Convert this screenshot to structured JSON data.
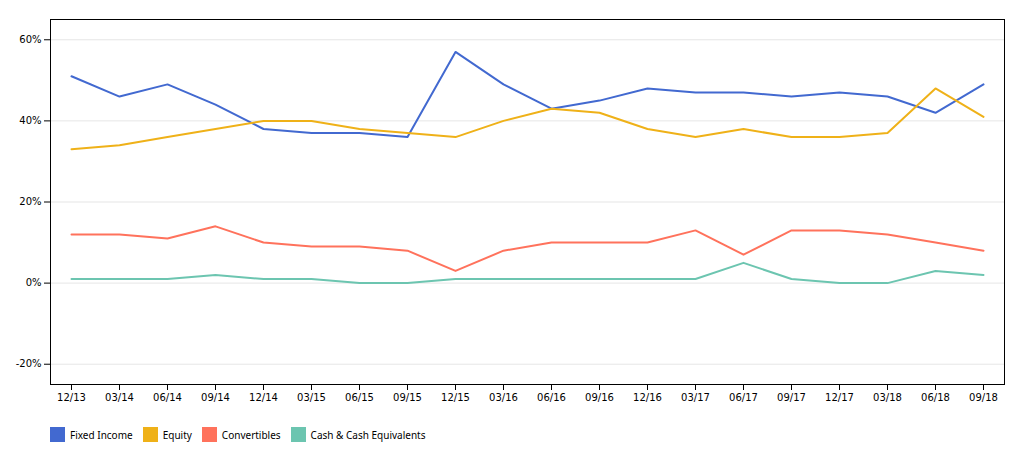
{
  "chart_data": {
    "type": "line",
    "categories": [
      "12/13",
      "03/14",
      "06/14",
      "09/14",
      "12/14",
      "03/15",
      "06/15",
      "09/15",
      "12/15",
      "03/16",
      "06/16",
      "09/16",
      "12/16",
      "03/17",
      "06/17",
      "09/17",
      "12/17",
      "03/18",
      "06/18",
      "09/18"
    ],
    "series": [
      {
        "name": "Fixed Income",
        "values": [
          51,
          46,
          49,
          44,
          38,
          37,
          37,
          36,
          57,
          49,
          43,
          45,
          48,
          47,
          47,
          46,
          47,
          46,
          42,
          49
        ]
      },
      {
        "name": "Equity",
        "values": [
          33,
          34,
          36,
          38,
          40,
          40,
          38,
          37,
          36,
          40,
          43,
          42,
          38,
          36,
          38,
          36,
          36,
          37,
          48,
          41
        ]
      },
      {
        "name": "Convertibles",
        "values": [
          12,
          12,
          11,
          14,
          10,
          9,
          9,
          8,
          3,
          8,
          10,
          10,
          10,
          13,
          7,
          13,
          13,
          12,
          10,
          8
        ]
      },
      {
        "name": "Cash & Cash Equivalents",
        "values": [
          1,
          1,
          1,
          2,
          1,
          1,
          0,
          0,
          1,
          1,
          1,
          1,
          1,
          1,
          5,
          1,
          0,
          0,
          3,
          2
        ]
      }
    ],
    "ylim": [
      -25,
      65
    ],
    "yticks": [
      {
        "value": -20,
        "label": "-20%"
      },
      {
        "value": 0,
        "label": "0%"
      },
      {
        "value": 20,
        "label": "20%"
      },
      {
        "value": 40,
        "label": "40%"
      },
      {
        "value": 60,
        "label": "60%"
      }
    ],
    "grid": true,
    "legend": "bottom"
  }
}
